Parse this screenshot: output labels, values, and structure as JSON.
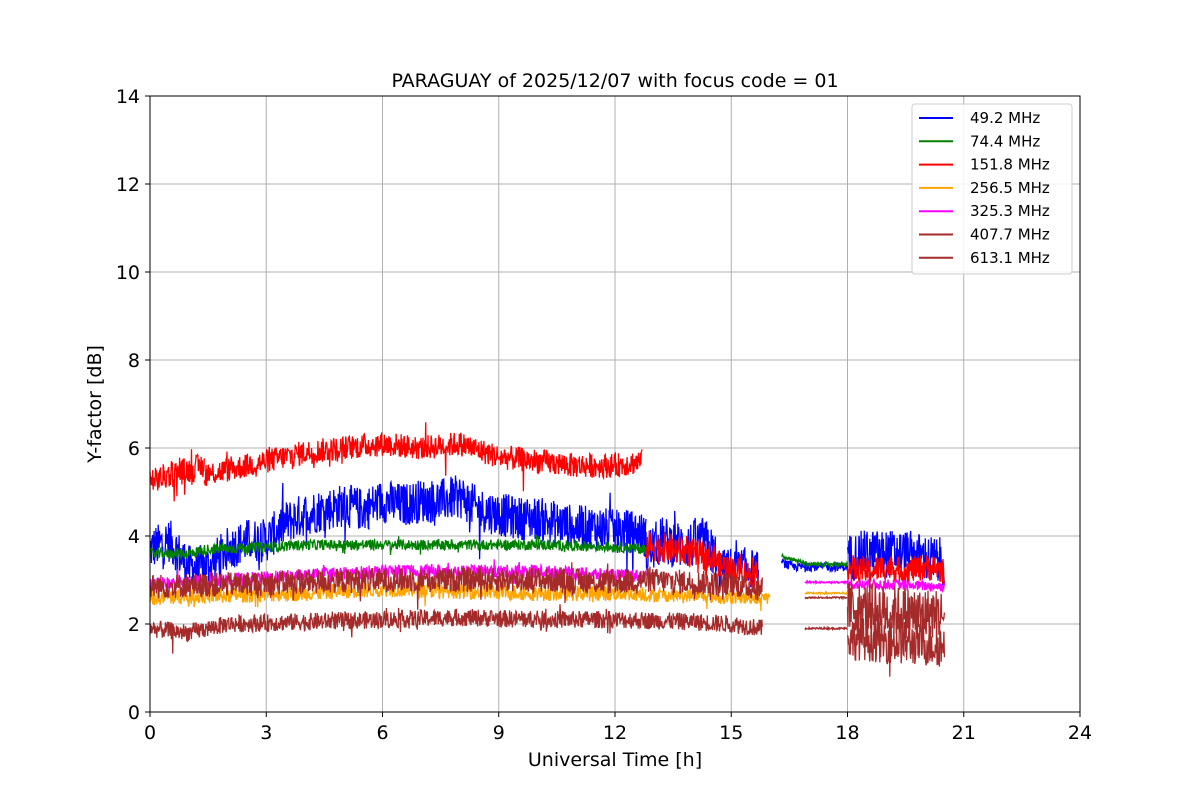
{
  "chart_data": {
    "type": "line",
    "title": "PARAGUAY of 2025/12/07 with focus code = 01",
    "xlabel": "Universal Time [h]",
    "ylabel": "Y-factor [dB]",
    "xlim": [
      0,
      24
    ],
    "ylim": [
      0,
      14
    ],
    "xticks": [
      0,
      3,
      6,
      9,
      12,
      15,
      18,
      21,
      24
    ],
    "yticks": [
      0,
      2,
      4,
      6,
      8,
      10,
      12,
      14
    ],
    "grid": true,
    "legend_position": "top-right",
    "series": [
      {
        "name": " 49.2 MHz",
        "color": "#0000ff",
        "segments": [
          {
            "x": [
              0,
              0.5,
              1.0,
              1.5,
              2.0,
              2.5,
              3.0,
              3.5,
              4.0,
              4.5,
              5.0,
              5.5,
              6.0,
              6.5,
              7.0,
              7.5,
              8.0,
              8.5,
              9.0,
              9.5,
              10.0,
              10.5,
              11.0,
              11.5,
              12.0,
              12.5,
              12.8
            ],
            "y": [
              3.7,
              3.9,
              3.3,
              3.3,
              3.7,
              3.9,
              3.9,
              4.3,
              4.5,
              4.6,
              4.7,
              4.6,
              4.8,
              4.7,
              4.8,
              4.8,
              4.9,
              4.6,
              4.5,
              4.4,
              4.4,
              4.3,
              4.2,
              4.2,
              4.1,
              4.1,
              4.0
            ],
            "noise": 0.5
          },
          {
            "x": [
              12.8,
              13.2,
              13.6,
              14.0,
              14.3,
              14.6
            ],
            "y": [
              3.6,
              3.9,
              3.8,
              3.8,
              3.9,
              3.5
            ],
            "noise": 0.55
          },
          {
            "x": [
              14.6,
              15.0,
              15.4,
              15.7
            ],
            "y": [
              3.2,
              3.3,
              3.3,
              3.2
            ],
            "noise": 0.45
          },
          {
            "x": [
              16.3,
              16.6,
              16.9,
              17.5,
              18.0
            ],
            "y": [
              3.4,
              3.3,
              3.3,
              3.3,
              3.3
            ],
            "noise": 0.1
          },
          {
            "x": [
              18.0,
              18.5,
              19.0,
              19.5,
              20.0,
              20.5
            ],
            "y": [
              3.5,
              3.6,
              3.6,
              3.6,
              3.5,
              3.4
            ],
            "noise": 0.55
          }
        ]
      },
      {
        "name": " 74.4 MHz",
        "color": "#008000",
        "segments": [
          {
            "x": [
              0,
              1.0,
              1.5,
              3.0,
              4.0,
              6.0,
              8.0,
              9.0,
              10.0,
              12.0,
              12.8
            ],
            "y": [
              3.6,
              3.6,
              3.7,
              3.75,
              3.8,
              3.8,
              3.8,
              3.8,
              3.8,
              3.75,
              3.7
            ],
            "noise": 0.12
          },
          {
            "x": [
              16.3,
              17.0,
              18.0
            ],
            "y": [
              3.55,
              3.35,
              3.35
            ],
            "noise": 0.05
          }
        ]
      },
      {
        "name": " 151.8 MHz",
        "color": "#ff0000",
        "segments": [
          {
            "x": [
              0,
              0.5,
              1.0,
              1.4
            ],
            "y": [
              5.2,
              5.4,
              5.5,
              5.6
            ],
            "noise": 0.3
          },
          {
            "x": [
              1.4,
              2.0,
              3.0,
              4.0,
              5.0,
              6.0,
              7.0,
              8.0,
              9.0,
              10.0,
              11.0,
              12.0,
              12.7
            ],
            "y": [
              5.4,
              5.5,
              5.7,
              5.9,
              6.0,
              6.1,
              6.0,
              6.1,
              5.8,
              5.7,
              5.6,
              5.6,
              5.7
            ],
            "noise": 0.28
          },
          {
            "x": [
              12.8,
              13.5,
              14.0,
              14.6
            ],
            "y": [
              3.8,
              3.7,
              3.6,
              3.5
            ],
            "noise": 0.35
          },
          {
            "x": [
              14.6,
              15.2,
              15.7
            ],
            "y": [
              3.4,
              3.2,
              3.1
            ],
            "noise": 0.3
          },
          {
            "x": [
              18.0,
              18.5,
              19.0,
              19.5,
              20.0,
              20.5
            ],
            "y": [
              3.3,
              3.2,
              3.3,
              3.2,
              3.3,
              3.2
            ],
            "noise": 0.3
          }
        ]
      },
      {
        "name": " 256.5 MHz",
        "color": "#ffa500",
        "segments": [
          {
            "x": [
              0,
              2.0,
              4.0,
              6.0,
              8.0,
              10.0,
              12.0,
              12.8
            ],
            "y": [
              2.6,
              2.65,
              2.7,
              2.8,
              2.75,
              2.7,
              2.7,
              2.7
            ],
            "noise": 0.18
          },
          {
            "x": [
              12.8,
              14.0,
              15.0,
              16.0
            ],
            "y": [
              2.65,
              2.65,
              2.6,
              2.6
            ],
            "noise": 0.15
          },
          {
            "x": [
              16.9,
              18.0
            ],
            "y": [
              2.7,
              2.7
            ],
            "noise": 0.02
          }
        ]
      },
      {
        "name": " 325.3 MHz",
        "color": "#ff00ff",
        "segments": [
          {
            "x": [
              0,
              2.0,
              4.0,
              6.0,
              8.0,
              10.0,
              12.0,
              12.8
            ],
            "y": [
              2.9,
              3.0,
              3.1,
              3.2,
              3.2,
              3.2,
              3.1,
              3.1
            ],
            "noise": 0.15
          },
          {
            "x": [
              16.9,
              18.0
            ],
            "y": [
              2.95,
              2.95
            ],
            "noise": 0.02
          },
          {
            "x": [
              18.0,
              19.0,
              20.5
            ],
            "y": [
              2.9,
              2.9,
              2.85
            ],
            "noise": 0.12
          }
        ]
      },
      {
        "name": " 407.7 MHz",
        "color": "#a52a2a",
        "segments": [
          {
            "x": [
              0,
              2.0,
              4.0,
              6.0,
              8.0,
              10.0,
              12.0,
              12.8,
              14.0,
              15.0,
              15.8
            ],
            "y": [
              2.85,
              2.9,
              2.95,
              3.0,
              3.0,
              3.0,
              2.95,
              3.0,
              2.95,
              2.9,
              2.8
            ],
            "noise": 0.28
          },
          {
            "x": [
              16.9,
              18.0
            ],
            "y": [
              2.6,
              2.6
            ],
            "noise": 0.02
          },
          {
            "x": [
              18.0,
              19.0,
              20.5
            ],
            "y": [
              2.4,
              2.3,
              2.2
            ],
            "noise": 0.6
          }
        ]
      },
      {
        "name": " 613.1 MHz",
        "color": "#a52a2a",
        "segments": [
          {
            "x": [
              0,
              1.0,
              2.0,
              4.0,
              6.0,
              8.0,
              10.0,
              12.0,
              14.0,
              15.0,
              15.8
            ],
            "y": [
              1.9,
              1.8,
              2.0,
              2.05,
              2.1,
              2.15,
              2.1,
              2.1,
              2.05,
              2.0,
              1.9
            ],
            "noise": 0.2
          },
          {
            "x": [
              16.9,
              18.0
            ],
            "y": [
              1.9,
              1.9
            ],
            "noise": 0.02
          },
          {
            "x": [
              18.0,
              19.0,
              20.5
            ],
            "y": [
              1.7,
              1.6,
              1.5
            ],
            "noise": 0.5
          }
        ]
      }
    ]
  }
}
